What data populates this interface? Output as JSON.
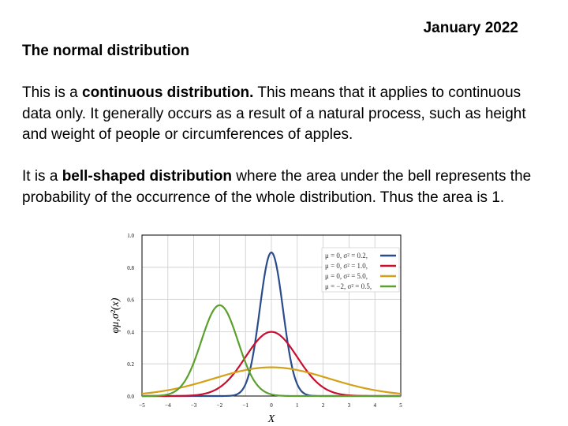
{
  "header": {
    "date": "January 2022",
    "title": "The normal distribution"
  },
  "paragraph1": {
    "pre": "This is a ",
    "bold": "continuous distribution.",
    "post": " This means that it applies to continuous data only. It generally occurs as a result of a natural process, such as height and weight of people or circumferences of apples."
  },
  "paragraph2": {
    "pre": "It is a ",
    "bold": "bell-shaped distribution",
    "post": " where the area under the bell represents the probability of the occurrence of the whole distribution. Thus the area is 1."
  },
  "chart_data": {
    "type": "line",
    "title": "",
    "xlabel": "X",
    "ylabel": "φμ,σ²(x)",
    "xlim": [
      -5,
      5
    ],
    "ylim": [
      0,
      1.0
    ],
    "xticks": [
      "−5",
      "−4",
      "−3",
      "−2",
      "−1",
      "0",
      "1",
      "2",
      "3",
      "4",
      "5"
    ],
    "yticks": [
      "0.0",
      "0.2",
      "0.4",
      "0.6",
      "0.8",
      "1.0"
    ],
    "grid": true,
    "legend_position": "top-right",
    "series": [
      {
        "name": "μ = 0,   σ² = 0.2,",
        "mu": 0,
        "var": 0.2,
        "color": "#2a4b8c"
      },
      {
        "name": "μ = 0,   σ² = 1.0,",
        "mu": 0,
        "var": 1.0,
        "color": "#c8102e"
      },
      {
        "name": "μ = 0,   σ² = 5.0,",
        "mu": 0,
        "var": 5.0,
        "color": "#d4a017"
      },
      {
        "name": "μ = −2,  σ² = 0.5,",
        "mu": -2,
        "var": 0.5,
        "color": "#5aa02c"
      }
    ]
  }
}
